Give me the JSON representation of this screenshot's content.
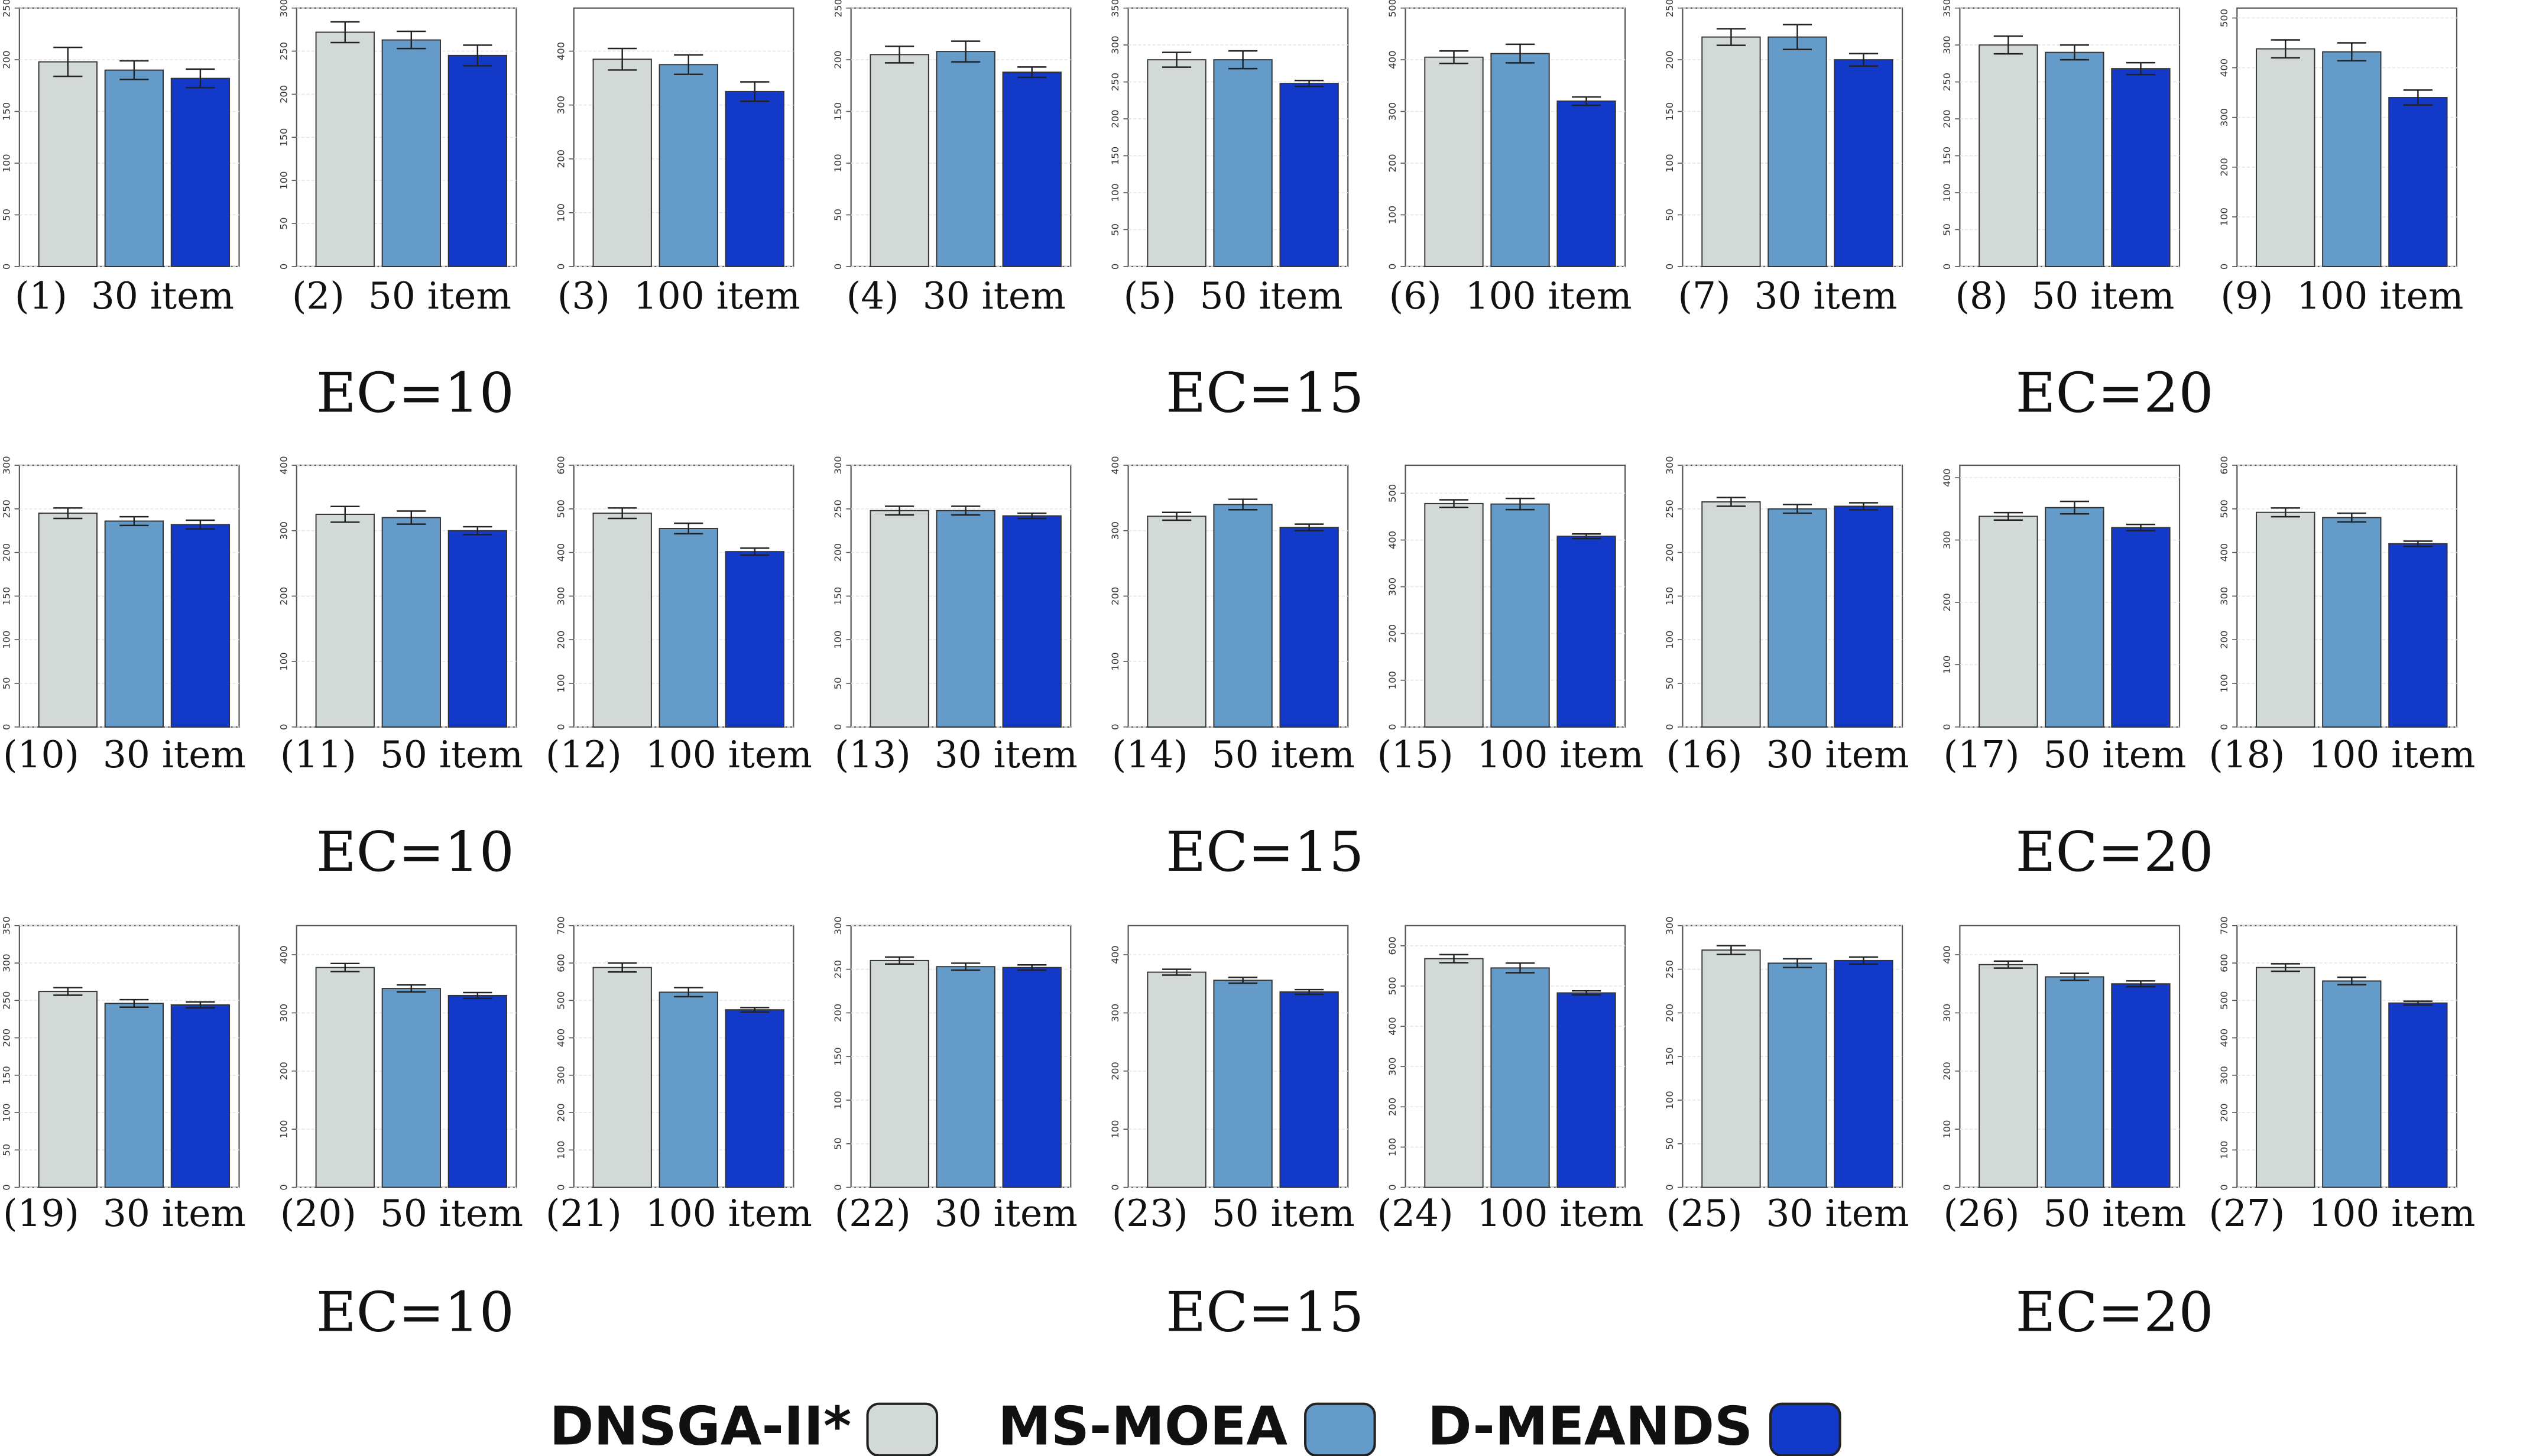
{
  "chart_data": [
    {
      "type": "bar",
      "caption": "(1)  30 item",
      "values": [
        198,
        190,
        182
      ],
      "errors": [
        14,
        9,
        9
      ],
      "ylim": [
        0,
        250
      ],
      "yticks": [
        0,
        50,
        100,
        150,
        200,
        250
      ]
    },
    {
      "type": "bar",
      "caption": "(2)  50 item",
      "values": [
        272,
        263,
        245
      ],
      "errors": [
        12,
        10,
        12
      ],
      "ylim": [
        0,
        300
      ],
      "yticks": [
        0,
        50,
        100,
        150,
        200,
        250,
        300
      ]
    },
    {
      "type": "bar",
      "caption": "(3)  100 item",
      "values": [
        385,
        375,
        325
      ],
      "errors": [
        20,
        18,
        18
      ],
      "ylim": [
        0,
        480
      ],
      "yticks": [
        0,
        100,
        200,
        300,
        400
      ]
    },
    {
      "type": "bar",
      "caption": "(4)  30 item",
      "values": [
        205,
        208,
        188
      ],
      "errors": [
        8,
        10,
        5
      ],
      "ylim": [
        0,
        250
      ],
      "yticks": [
        0,
        50,
        100,
        150,
        200,
        250
      ]
    },
    {
      "type": "bar",
      "caption": "(5)  50 item",
      "values": [
        280,
        280,
        248
      ],
      "errors": [
        10,
        12,
        4
      ],
      "ylim": [
        0,
        350
      ],
      "yticks": [
        0,
        50,
        100,
        150,
        200,
        250,
        300,
        350
      ]
    },
    {
      "type": "bar",
      "caption": "(6)  100 item",
      "values": [
        405,
        412,
        320
      ],
      "errors": [
        12,
        18,
        8
      ],
      "ylim": [
        0,
        500
      ],
      "yticks": [
        0,
        100,
        200,
        300,
        400,
        500
      ]
    },
    {
      "type": "bar",
      "caption": "(7)  30 item",
      "values": [
        222,
        222,
        200
      ],
      "errors": [
        8,
        12,
        6
      ],
      "ylim": [
        0,
        250
      ],
      "yticks": [
        0,
        50,
        100,
        150,
        200,
        250
      ]
    },
    {
      "type": "bar",
      "caption": "(8)  50 item",
      "values": [
        300,
        290,
        268
      ],
      "errors": [
        12,
        10,
        8
      ],
      "ylim": [
        0,
        350
      ],
      "yticks": [
        0,
        50,
        100,
        150,
        200,
        250,
        300,
        350
      ]
    },
    {
      "type": "bar",
      "caption": "(9)  100 item",
      "values": [
        438,
        432,
        340
      ],
      "errors": [
        18,
        18,
        15
      ],
      "ylim": [
        0,
        520
      ],
      "yticks": [
        0,
        100,
        200,
        300,
        400,
        500
      ]
    },
    {
      "type": "bar",
      "caption": "(10)  30 item",
      "values": [
        245,
        236,
        232
      ],
      "errors": [
        6,
        5,
        5
      ],
      "ylim": [
        0,
        300
      ],
      "yticks": [
        0,
        50,
        100,
        150,
        200,
        250,
        300
      ]
    },
    {
      "type": "bar",
      "caption": "(11)  50 item",
      "values": [
        325,
        320,
        300
      ],
      "errors": [
        12,
        10,
        6
      ],
      "ylim": [
        0,
        400
      ],
      "yticks": [
        0,
        100,
        200,
        300,
        400
      ]
    },
    {
      "type": "bar",
      "caption": "(12)  100 item",
      "values": [
        490,
        455,
        402
      ],
      "errors": [
        12,
        12,
        8
      ],
      "ylim": [
        0,
        600
      ],
      "yticks": [
        0,
        100,
        200,
        300,
        400,
        500,
        600
      ]
    },
    {
      "type": "bar",
      "caption": "(13)  30 item",
      "values": [
        248,
        248,
        242
      ],
      "errors": [
        5,
        5,
        3
      ],
      "ylim": [
        0,
        300
      ],
      "yticks": [
        0,
        50,
        100,
        150,
        200,
        250,
        300
      ]
    },
    {
      "type": "bar",
      "caption": "(14)  50 item",
      "values": [
        322,
        340,
        305
      ],
      "errors": [
        6,
        8,
        5
      ],
      "ylim": [
        0,
        400
      ],
      "yticks": [
        0,
        100,
        200,
        300,
        400
      ]
    },
    {
      "type": "bar",
      "caption": "(15)  100 item",
      "values": [
        478,
        477,
        408
      ],
      "errors": [
        8,
        12,
        5
      ],
      "ylim": [
        0,
        560
      ],
      "yticks": [
        0,
        100,
        200,
        300,
        400,
        500
      ]
    },
    {
      "type": "bar",
      "caption": "(16)  30 item",
      "values": [
        258,
        250,
        253
      ],
      "errors": [
        5,
        5,
        4
      ],
      "ylim": [
        0,
        300
      ],
      "yticks": [
        0,
        50,
        100,
        150,
        200,
        250,
        300
      ]
    },
    {
      "type": "bar",
      "caption": "(17)  50 item",
      "values": [
        338,
        352,
        320
      ],
      "errors": [
        6,
        10,
        5
      ],
      "ylim": [
        0,
        420
      ],
      "yticks": [
        0,
        100,
        200,
        300,
        400
      ]
    },
    {
      "type": "bar",
      "caption": "(18)  100 item",
      "values": [
        492,
        480,
        420
      ],
      "errors": [
        10,
        10,
        6
      ],
      "ylim": [
        0,
        600
      ],
      "yticks": [
        0,
        100,
        200,
        300,
        400,
        500,
        600
      ]
    },
    {
      "type": "bar",
      "caption": "(19)  30 item",
      "values": [
        262,
        246,
        244
      ],
      "errors": [
        5,
        5,
        4
      ],
      "ylim": [
        0,
        350
      ],
      "yticks": [
        0,
        50,
        100,
        150,
        200,
        250,
        300,
        350
      ]
    },
    {
      "type": "bar",
      "caption": "(20)  50 item",
      "values": [
        378,
        342,
        330
      ],
      "errors": [
        7,
        6,
        5
      ],
      "ylim": [
        0,
        450
      ],
      "yticks": [
        0,
        100,
        200,
        300,
        400
      ]
    },
    {
      "type": "bar",
      "caption": "(21)  100 item",
      "values": [
        588,
        522,
        475
      ],
      "errors": [
        12,
        12,
        6
      ],
      "ylim": [
        0,
        700
      ],
      "yticks": [
        0,
        100,
        200,
        300,
        400,
        500,
        600,
        700
      ]
    },
    {
      "type": "bar",
      "caption": "(22)  30 item",
      "values": [
        260,
        253,
        252
      ],
      "errors": [
        4,
        4,
        3
      ],
      "ylim": [
        0,
        300
      ],
      "yticks": [
        0,
        50,
        100,
        150,
        200,
        250,
        300
      ]
    },
    {
      "type": "bar",
      "caption": "(23)  50 item",
      "values": [
        370,
        356,
        336
      ],
      "errors": [
        5,
        5,
        4
      ],
      "ylim": [
        0,
        450
      ],
      "yticks": [
        0,
        100,
        200,
        300,
        400
      ]
    },
    {
      "type": "bar",
      "caption": "(24)  100 item",
      "values": [
        568,
        545,
        483
      ],
      "errors": [
        10,
        12,
        5
      ],
      "ylim": [
        0,
        650
      ],
      "yticks": [
        0,
        100,
        200,
        300,
        400,
        500,
        600
      ]
    },
    {
      "type": "bar",
      "caption": "(25)  30 item",
      "values": [
        272,
        257,
        260
      ],
      "errors": [
        5,
        5,
        4
      ],
      "ylim": [
        0,
        300
      ],
      "yticks": [
        0,
        50,
        100,
        150,
        200,
        250,
        300
      ]
    },
    {
      "type": "bar",
      "caption": "(26)  50 item",
      "values": [
        383,
        362,
        350
      ],
      "errors": [
        6,
        6,
        5
      ],
      "ylim": [
        0,
        450
      ],
      "yticks": [
        0,
        100,
        200,
        300,
        400
      ]
    },
    {
      "type": "bar",
      "caption": "(27)  100 item",
      "values": [
        588,
        552,
        493
      ],
      "errors": [
        10,
        10,
        5
      ],
      "ylim": [
        0,
        700
      ],
      "yticks": [
        0,
        100,
        200,
        300,
        400,
        500,
        600,
        700
      ]
    }
  ],
  "group_labels": [
    "EC=10",
    "EC=15",
    "EC=20",
    "EC=10",
    "EC=15",
    "EC=20",
    "EC=10",
    "EC=15",
    "EC=20"
  ],
  "legend": [
    {
      "name": "DNSGA-II*",
      "color": "#d3d9d7"
    },
    {
      "name": "MS-MOEA",
      "color": "#659bc9"
    },
    {
      "name": "D-MEANDS",
      "color": "#1239c8"
    }
  ]
}
